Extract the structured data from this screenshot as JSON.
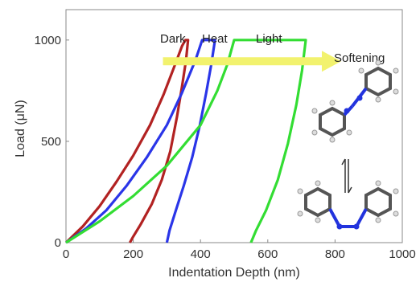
{
  "chart_data": {
    "type": "line",
    "xlabel": "Indentation Depth (nm)",
    "ylabel": "Load (μN)",
    "xlim": [
      0,
      1000
    ],
    "ylim": [
      0,
      1150
    ],
    "xticks": [
      0,
      200,
      400,
      600,
      800,
      1000
    ],
    "yticks": [
      0,
      500,
      1000
    ],
    "grid": false,
    "series": [
      {
        "name": "Dark",
        "color": "#b22222",
        "points": [
          [
            0,
            0
          ],
          [
            50,
            80
          ],
          [
            100,
            180
          ],
          [
            150,
            300
          ],
          [
            200,
            430
          ],
          [
            250,
            580
          ],
          [
            290,
            730
          ],
          [
            320,
            860
          ],
          [
            345,
            970
          ],
          [
            355,
            1000
          ],
          [
            360,
            1000
          ],
          [
            363,
            1000
          ],
          [
            357,
            900
          ],
          [
            345,
            770
          ],
          [
            330,
            620
          ],
          [
            310,
            450
          ],
          [
            285,
            310
          ],
          [
            255,
            190
          ],
          [
            222,
            90
          ],
          [
            200,
            30
          ],
          [
            190,
            0
          ]
        ]
      },
      {
        "name": "Heat",
        "color": "#2a35e8",
        "points": [
          [
            0,
            0
          ],
          [
            60,
            70
          ],
          [
            120,
            160
          ],
          [
            180,
            280
          ],
          [
            240,
            420
          ],
          [
            300,
            580
          ],
          [
            345,
            740
          ],
          [
            385,
            900
          ],
          [
            405,
            1000
          ],
          [
            440,
            1000
          ],
          [
            443,
            1000
          ],
          [
            432,
            880
          ],
          [
            417,
            740
          ],
          [
            398,
            580
          ],
          [
            375,
            420
          ],
          [
            350,
            280
          ],
          [
            325,
            150
          ],
          [
            308,
            60
          ],
          [
            300,
            0
          ]
        ]
      },
      {
        "name": "Light",
        "color": "#33dd33",
        "points": [
          [
            0,
            0
          ],
          [
            100,
            105
          ],
          [
            200,
            230
          ],
          [
            300,
            380
          ],
          [
            400,
            580
          ],
          [
            450,
            750
          ],
          [
            480,
            880
          ],
          [
            500,
            1000
          ],
          [
            710,
            1000
          ],
          [
            713,
            1000
          ],
          [
            702,
            850
          ],
          [
            685,
            680
          ],
          [
            660,
            490
          ],
          [
            630,
            310
          ],
          [
            595,
            160
          ],
          [
            565,
            60
          ],
          [
            550,
            0
          ]
        ]
      }
    ],
    "annotations": {
      "softening_label": "Softening",
      "arrow_from": [
        420,
        895
      ],
      "arrow_to": [
        1000,
        895
      ]
    }
  }
}
